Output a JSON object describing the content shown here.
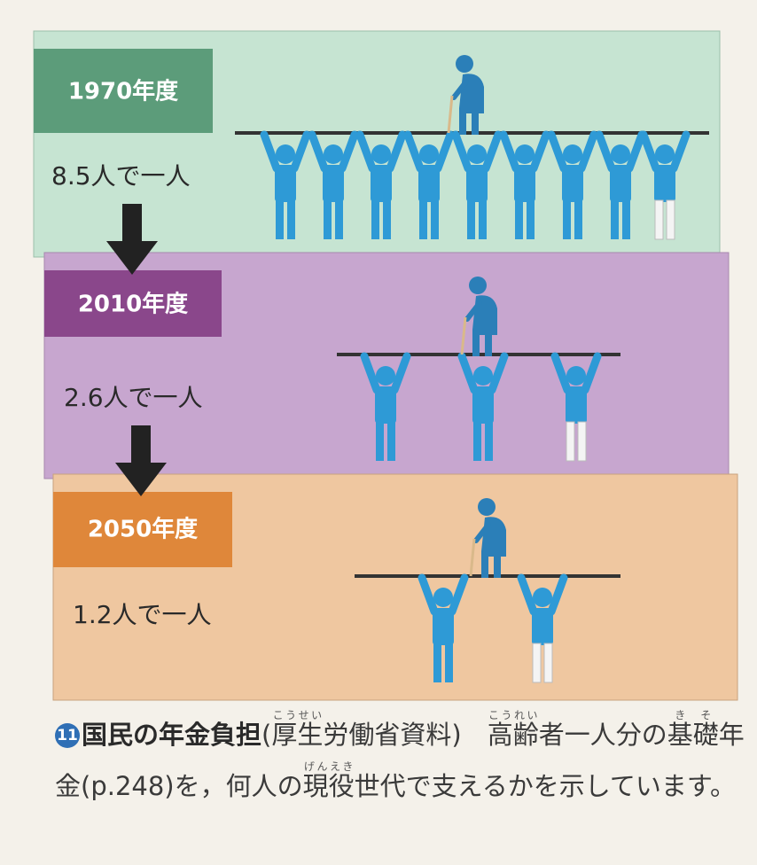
{
  "panels": [
    {
      "year": "1970年度",
      "ratio": "8.5人で一人"
    },
    {
      "year": "2010年度",
      "ratio": "2.6人で一人"
    },
    {
      "year": "2050年度",
      "ratio": "1.2人で一人"
    }
  ],
  "caption": {
    "number": "11",
    "title": "国民の年金負担",
    "body": [
      {
        "text": "("
      },
      {
        "text": "厚生",
        "ruby": "こうせい"
      },
      {
        "text": "労働省資料)　"
      },
      {
        "text": "高齢",
        "ruby": "こうれい"
      },
      {
        "text": "者一人分の"
      },
      {
        "text": "基礎",
        "ruby": "きそ"
      },
      {
        "text": "年金(p.248)を，何人の"
      },
      {
        "text": "現役",
        "ruby": "げんえき"
      },
      {
        "text": "世代で支えるかを示しています。"
      }
    ]
  }
}
